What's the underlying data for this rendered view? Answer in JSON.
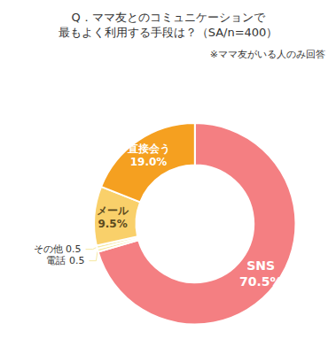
{
  "chart_data": {
    "type": "donut",
    "title": "Q．ママ友とのコミュニケーションで",
    "subtitle": "最もよく利用する手段は？（SA/n=400）",
    "annotations": [
      "※ママ友がいる人のみ回答"
    ],
    "categories": [
      "SNS",
      "電話",
      "その他",
      "メール",
      "直接会う"
    ],
    "values": [
      70.5,
      0.5,
      0.5,
      9.5,
      19.0
    ],
    "value_labels": [
      "70.5%",
      "0.5",
      "0.5",
      "9.5%",
      "19.0%"
    ],
    "colors": [
      "#F47F82",
      "#F5E8A0",
      "#F5E8A0",
      "#F9D06A",
      "#F5A020"
    ],
    "data_labels": true
  }
}
